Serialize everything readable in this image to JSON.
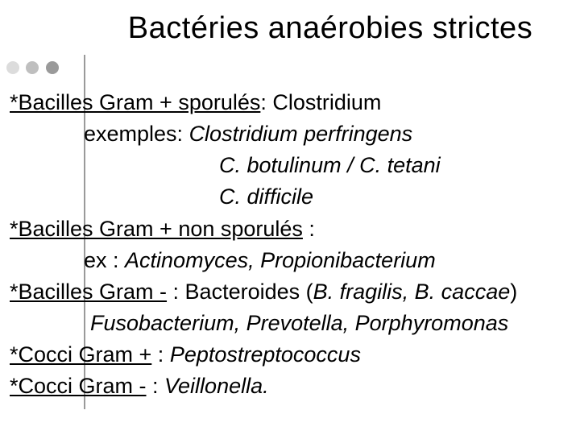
{
  "title": "Bactéries anaérobies strictes",
  "bullets": {
    "colors": [
      "#dcdcdc",
      "#bfbfbf",
      "#9a9a9a"
    ]
  },
  "lines": {
    "l1a": "*Bacilles Gram + sporulés",
    "l1b": ":   Clostridium",
    "l2a": "exemples:    ",
    "l2b": "Clostridium perfringens",
    "l3": "C. botulinum / C. tetani",
    "l4": "C. difficile",
    "l5a": "*Bacilles Gram + non sporulés",
    "l5b": " :",
    "l6a": "ex : ",
    "l6b": "Actinomyces, Propionibacterium",
    "l7a": "*Bacilles Gram -",
    "l7b": " : Bacteroides (",
    "l7c": "B. fragilis, B. caccae",
    "l7d": ")",
    "l8": "Fusobacterium, Prevotella, Porphyromonas",
    "l9a": "*Cocci Gram +",
    "l9b": " :    ",
    "l9c": "Peptostreptococcus",
    "l10a": "*Cocci Gram -",
    "l10b": " :    ",
    "l10c": "Veillonella."
  },
  "typography": {
    "title_fontsize": 38,
    "body_fontsize": 27,
    "line_height": 1.45
  },
  "colors": {
    "background": "#ffffff",
    "text": "#000000",
    "divider": "#9a9a9a"
  }
}
